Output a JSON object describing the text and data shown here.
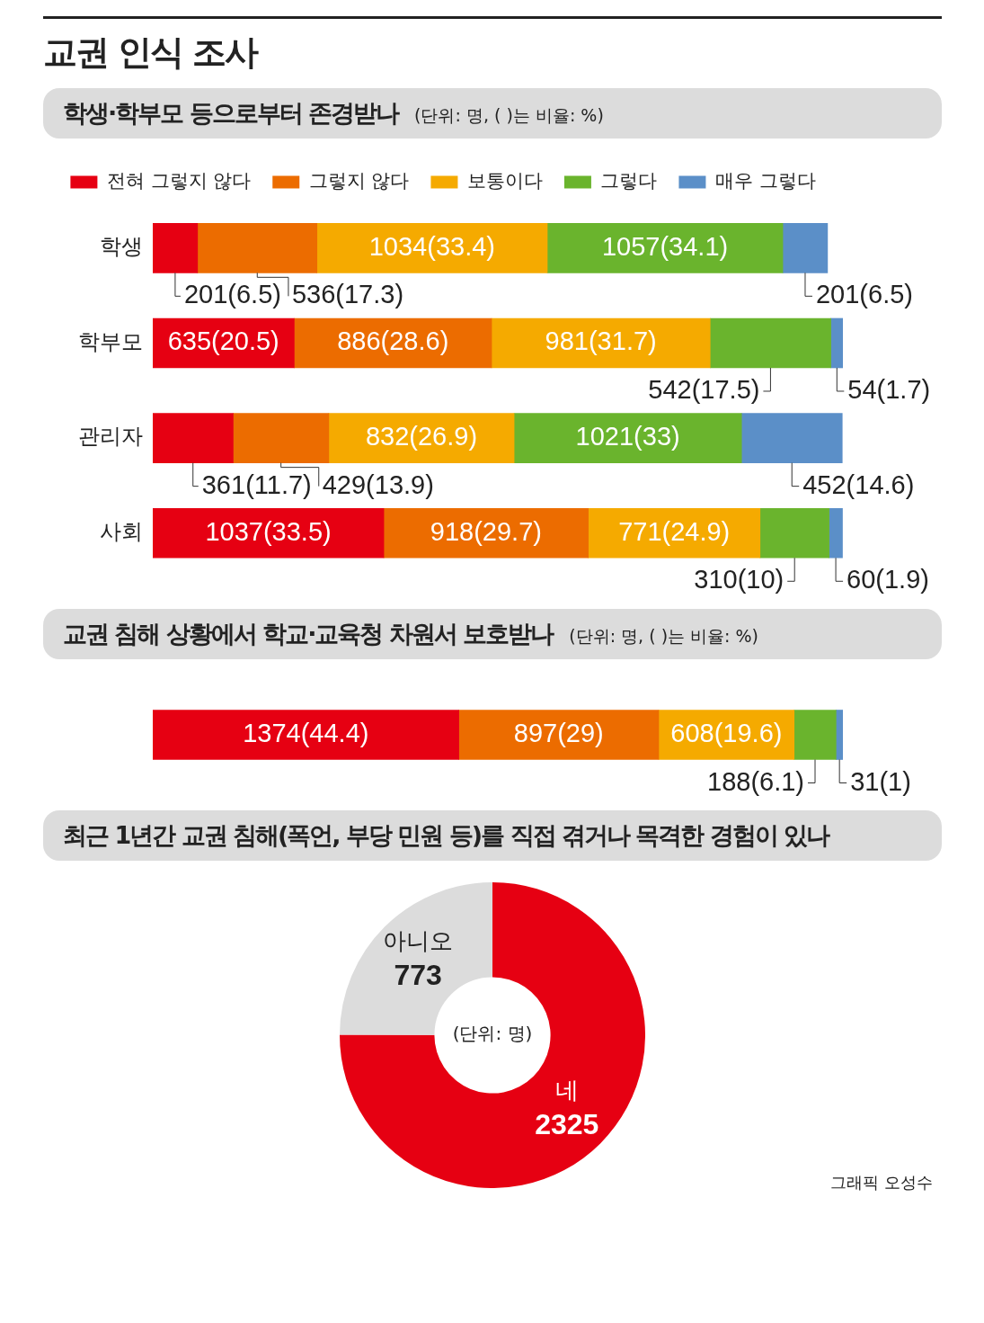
{
  "chart_data": [
    {
      "type": "bar",
      "orientation": "horizontal",
      "stacked": true,
      "title": "교권 인식 조사",
      "subtitle": "학생·학부모 등으로부터 존경받나",
      "annotations": [
        "(단위: 명, ( )는 비율: %)"
      ],
      "categories": [
        "학생",
        "학부모",
        "관리자",
        "사회"
      ],
      "legend": "top",
      "tick_labels": "y",
      "series": [
        {
          "name": "전혀 그렇지 않다",
          "color": "#e60012",
          "values": [
            201,
            635,
            361,
            1037
          ],
          "value_labels": [
            "201(6.5)",
            "635(20.5)",
            "361(11.7)",
            "1037(33.5)"
          ]
        },
        {
          "name": "그렇지 않다",
          "color": "#ec6c00",
          "values": [
            536,
            886,
            429,
            918
          ],
          "value_labels": [
            "536(17.3)",
            "886(28.6)",
            "429(13.9)",
            "918(29.7)"
          ]
        },
        {
          "name": "보통이다",
          "color": "#f5aa00",
          "values": [
            1034,
            981,
            832,
            771
          ],
          "value_labels": [
            "1034(33.4)",
            "981(31.7)",
            "832(26.9)",
            "771(24.9)"
          ]
        },
        {
          "name": "그렇다",
          "color": "#6ab42d",
          "values": [
            1057,
            542,
            1021,
            310
          ],
          "value_labels": [
            "1057(34.1)",
            "542(17.5)",
            "1021(33)",
            "310(10)"
          ]
        },
        {
          "name": "매우 그렇다",
          "color": "#5b8fc8",
          "values": [
            201,
            54,
            452,
            60
          ],
          "value_labels": [
            "201(6.5)",
            "54(1.7)",
            "452(14.6)",
            "60(1.9)"
          ]
        }
      ]
    },
    {
      "type": "bar",
      "orientation": "horizontal",
      "stacked": true,
      "title": "교권 침해 상황에서 학교·교육청 차원서 보호받나",
      "annotations": [
        "(단위: 명, ( )는 비율: %)"
      ],
      "categories": [
        null
      ],
      "tick_labels": false,
      "series": [
        {
          "color": "#e60012",
          "values": [
            1374
          ],
          "value_labels": [
            "1374(44.4)"
          ]
        },
        {
          "color": "#ec6c00",
          "values": [
            897
          ],
          "value_labels": [
            "897(29)"
          ]
        },
        {
          "color": "#f5aa00",
          "values": [
            608
          ],
          "value_labels": [
            "608(19.6)"
          ]
        },
        {
          "color": "#6ab42d",
          "values": [
            188
          ],
          "value_labels": [
            "188(6.1)"
          ]
        },
        {
          "color": "#5b8fc8",
          "values": [
            31
          ],
          "value_labels": [
            "31(1)"
          ]
        }
      ]
    },
    {
      "type": "donut",
      "title": "최근 1년간 교권 침해(폭언, 부당 민원 등)를 직접 겪거나 목격한 경험이 있나",
      "categories": [
        "네",
        "아니오"
      ],
      "values": [
        2325,
        773
      ],
      "colors": [
        "#e60012",
        "#dcdcdc"
      ],
      "data_labels": true,
      "annotations": [
        "(단위: 명)",
        "그래픽 오성수"
      ]
    }
  ]
}
